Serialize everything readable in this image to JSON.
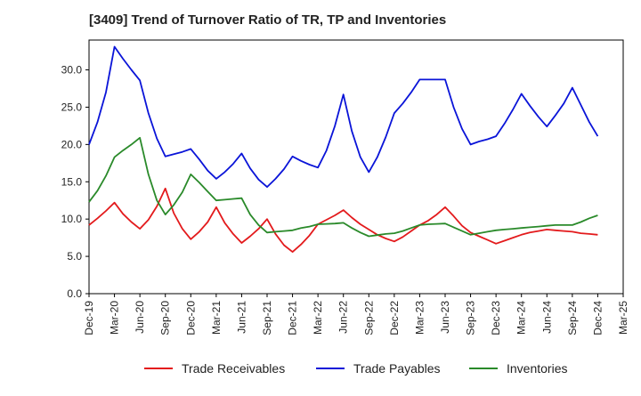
{
  "chart_data": {
    "type": "line",
    "title": "[3409]  Trend of Turnover Ratio of TR, TP and Inventories",
    "xlabel": "",
    "ylabel": "",
    "ylim": [
      0,
      34
    ],
    "yticks": [
      0.0,
      5.0,
      10.0,
      15.0,
      20.0,
      25.0,
      30.0
    ],
    "xtick_labels": [
      "Dec-19",
      "Mar-20",
      "Jun-20",
      "Sep-20",
      "Dec-20",
      "Mar-21",
      "Jun-21",
      "Sep-21",
      "Dec-21",
      "Mar-22",
      "Jun-22",
      "Sep-22",
      "Dec-22",
      "Mar-23",
      "Jun-23",
      "Sep-23",
      "Dec-23",
      "Mar-24",
      "Jun-24",
      "Sep-24",
      "Dec-24",
      "Mar-25"
    ],
    "x": [
      "Dec-19",
      "Jan-20",
      "Feb-20",
      "Mar-20",
      "Apr-20",
      "May-20",
      "Jun-20",
      "Jul-20",
      "Aug-20",
      "Sep-20",
      "Oct-20",
      "Nov-20",
      "Dec-20",
      "Jan-21",
      "Feb-21",
      "Mar-21",
      "Apr-21",
      "May-21",
      "Jun-21",
      "Jul-21",
      "Aug-21",
      "Sep-21",
      "Oct-21",
      "Nov-21",
      "Dec-21",
      "Jan-22",
      "Feb-22",
      "Mar-22",
      "Apr-22",
      "May-22",
      "Jun-22",
      "Jul-22",
      "Aug-22",
      "Sep-22",
      "Oct-22",
      "Nov-22",
      "Dec-22",
      "Jan-23",
      "Feb-23",
      "Mar-23",
      "Apr-23",
      "May-23",
      "Jun-23",
      "Jul-23",
      "Aug-23",
      "Sep-23",
      "Oct-23",
      "Nov-23",
      "Dec-23",
      "Jan-24",
      "Feb-24",
      "Mar-24",
      "Apr-24",
      "May-24",
      "Jun-24",
      "Jul-24",
      "Aug-24",
      "Sep-24",
      "Oct-24",
      "Nov-24",
      "Dec-24"
    ],
    "series": [
      {
        "name": "Trade Receivables",
        "color": "#e31a1c",
        "values": [
          9.2,
          10.1,
          11.1,
          12.2,
          10.7,
          9.6,
          8.7,
          9.9,
          11.7,
          14.1,
          10.8,
          8.7,
          7.3,
          8.3,
          9.6,
          11.6,
          9.5,
          8.0,
          6.8,
          7.7,
          8.7,
          10.0,
          8.0,
          6.5,
          5.6,
          6.6,
          7.8,
          9.3,
          9.9,
          10.5,
          11.2,
          10.2,
          9.3,
          8.6,
          7.9,
          7.4,
          7.0,
          7.6,
          8.4,
          9.2,
          9.8,
          10.6,
          11.6,
          10.4,
          9.1,
          8.2,
          7.7,
          7.2,
          6.7,
          7.1,
          7.5,
          7.9,
          8.2,
          8.4,
          8.6,
          8.5,
          8.4,
          8.3,
          8.1,
          8.0,
          7.9
        ]
      },
      {
        "name": "Trade Payables",
        "color": "#0a14d8",
        "values": [
          20.0,
          23.0,
          27.0,
          33.1,
          31.5,
          30.0,
          28.6,
          24.2,
          20.8,
          18.4,
          18.7,
          19.0,
          19.4,
          18.0,
          16.5,
          15.4,
          16.3,
          17.4,
          18.8,
          16.8,
          15.3,
          14.3,
          15.4,
          16.7,
          18.4,
          17.8,
          17.3,
          16.9,
          19.2,
          22.5,
          26.7,
          21.8,
          18.3,
          16.3,
          18.3,
          21.0,
          24.2,
          25.5,
          27.0,
          28.7,
          28.7,
          28.7,
          28.7,
          25.0,
          22.1,
          20.0,
          20.4,
          20.7,
          21.1,
          22.8,
          24.7,
          26.8,
          25.2,
          23.7,
          22.4,
          23.9,
          25.5,
          27.6,
          25.3,
          23.0,
          21.1
        ]
      },
      {
        "name": "Inventories",
        "color": "#2a8a2a",
        "values": [
          12.3,
          13.8,
          15.8,
          18.3,
          19.2,
          20.0,
          20.9,
          16.0,
          12.5,
          10.6,
          11.9,
          13.6,
          16.0,
          14.9,
          13.7,
          12.5,
          12.6,
          12.7,
          12.8,
          10.6,
          9.2,
          8.2,
          8.3,
          8.4,
          8.5,
          8.8,
          9.0,
          9.3,
          9.35,
          9.4,
          9.5,
          8.8,
          8.2,
          7.7,
          7.85,
          8.0,
          8.1,
          8.4,
          8.8,
          9.2,
          9.3,
          9.35,
          9.4,
          8.9,
          8.4,
          7.9,
          8.1,
          8.3,
          8.5,
          8.6,
          8.7,
          8.8,
          8.9,
          9.0,
          9.1,
          9.2,
          9.2,
          9.2,
          9.6,
          10.1,
          10.5
        ]
      }
    ],
    "legend_position": "bottom-center",
    "grid": false
  }
}
